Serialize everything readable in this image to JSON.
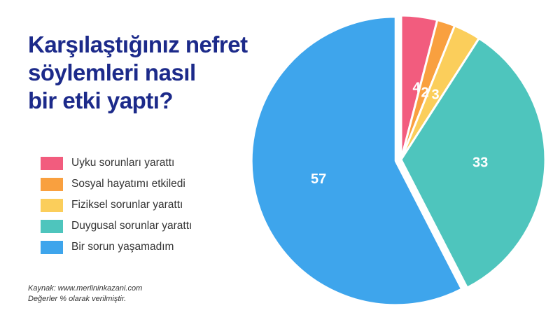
{
  "title_lines": [
    "Karşılaştığınız nefret",
    "söylemleri nasıl",
    "bir etki yaptı?"
  ],
  "source": {
    "line1": "Kaynak: www.merlininkazani.com",
    "line2": "Değerler % olarak verilmiştir."
  },
  "chart_data": {
    "type": "pie",
    "title": "Karşılaştığınız nefret söylemleri nasıl bir etki yaptı?",
    "slices": [
      {
        "label": "Uyku sorunları yarattı",
        "value": 4,
        "color": "#f25c7e"
      },
      {
        "label": "Sosyal hayatımı etkiledi",
        "value": 2,
        "color": "#f9a03f"
      },
      {
        "label": "Fiziksel sorunlar yarattı",
        "value": 3,
        "color": "#fbce5b"
      },
      {
        "label": "Duygusal sorunlar yarattı",
        "value": 33,
        "color": "#4ec5bd"
      },
      {
        "label": "Bir sorun yaşamadım",
        "value": 57,
        "color": "#3ea5ec"
      }
    ],
    "start_at": "top",
    "direction": "clockwise",
    "exploded_slice": "Bir sorun yaşamadım",
    "legend_position": "left"
  }
}
